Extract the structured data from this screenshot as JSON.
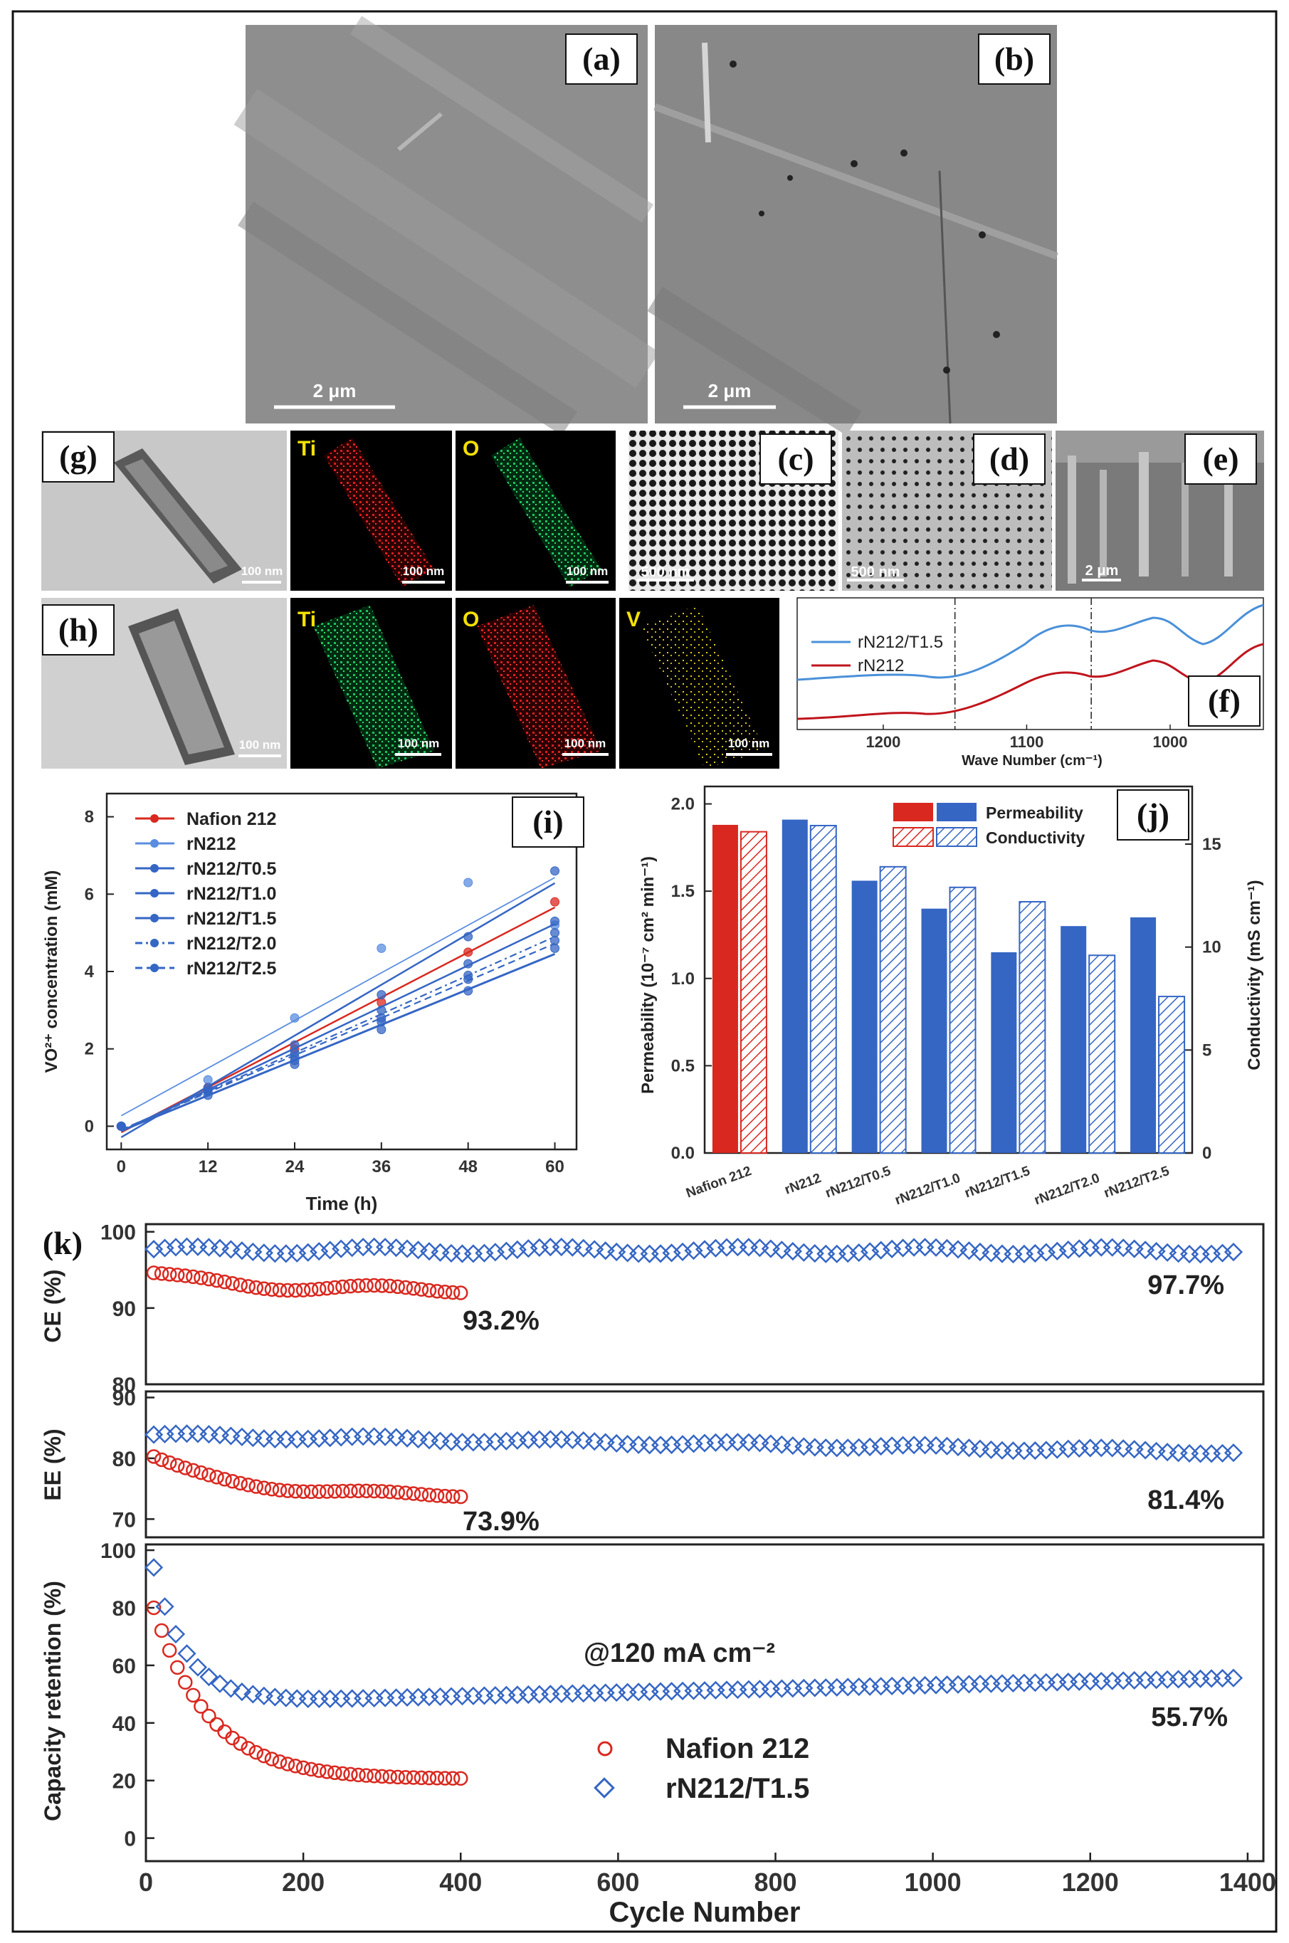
{
  "panels": {
    "a": {
      "label": "(a)",
      "scale": "2 μm"
    },
    "b": {
      "label": "(b)",
      "scale": "2 μm"
    },
    "c": {
      "label": "(c)",
      "scale": "500 nm"
    },
    "d": {
      "label": "(d)",
      "scale": "500 nm"
    },
    "e": {
      "label": "(e)",
      "scale": "2 μm"
    },
    "g": {
      "label": "(g)",
      "scale": "100 nm",
      "maps": [
        "Ti",
        "O"
      ]
    },
    "h": {
      "label": "(h)",
      "scale": "100 nm",
      "maps": [
        "Ti",
        "O",
        "V"
      ]
    },
    "f": {
      "label": "(f)"
    },
    "i": {
      "label": "(i)"
    },
    "j": {
      "label": "(j)"
    },
    "k": {
      "label": "(k)"
    }
  },
  "colors": {
    "red": "#d9281f",
    "blue": "#3566c4",
    "lightblue": "#5b8de0"
  },
  "chart_data": [
    {
      "id": "f",
      "type": "line",
      "xlabel": "Wave Number (cm⁻¹)",
      "x_ticks": [
        "1200",
        "1100",
        "1000"
      ],
      "legend": [
        "rN212/T1.5",
        "rN212"
      ],
      "xlim": [
        1260,
        935
      ],
      "vlines": [
        1150,
        1055
      ]
    },
    {
      "id": "i",
      "type": "scatter",
      "xlabel": "Time (h)",
      "ylabel": "VO²⁺ concentration (mM)",
      "x_ticks": [
        "0",
        "12",
        "24",
        "36",
        "48",
        "60"
      ],
      "y_ticks": [
        "0",
        "2",
        "4",
        "6",
        "8"
      ],
      "xlim": [
        -2,
        63
      ],
      "ylim": [
        -0.6,
        8.6
      ],
      "series": [
        {
          "name": "Nafion 212",
          "x": [
            0,
            12,
            24,
            36,
            48,
            60
          ],
          "values": [
            0,
            1.0,
            2.0,
            3.2,
            4.5,
            5.8
          ]
        },
        {
          "name": "rN212",
          "x": [
            0,
            12,
            24,
            36,
            48,
            60
          ],
          "values": [
            0,
            1.2,
            2.8,
            4.6,
            6.3,
            5.2
          ]
        },
        {
          "name": "rN212/T0.5",
          "x": [
            0,
            12,
            24,
            36,
            48,
            60
          ],
          "values": [
            0,
            1.0,
            2.1,
            3.4,
            4.9,
            6.6
          ]
        },
        {
          "name": "rN212/T1.0",
          "x": [
            0,
            12,
            24,
            36,
            48,
            60
          ],
          "values": [
            0,
            0.9,
            1.9,
            3.0,
            4.2,
            5.3
          ]
        },
        {
          "name": "rN212/T1.5",
          "x": [
            0,
            12,
            24,
            36,
            48,
            60
          ],
          "values": [
            0,
            0.8,
            1.6,
            2.5,
            3.5,
            4.6
          ]
        },
        {
          "name": "rN212/T2.0",
          "x": [
            0,
            12,
            24,
            36,
            48,
            60
          ],
          "values": [
            0,
            0.9,
            1.8,
            2.8,
            3.9,
            5.0
          ]
        },
        {
          "name": "rN212/T2.5",
          "x": [
            0,
            12,
            24,
            36,
            48,
            60
          ],
          "values": [
            0,
            0.9,
            1.7,
            2.7,
            3.8,
            4.8
          ]
        }
      ]
    },
    {
      "id": "j",
      "type": "bar",
      "categories": [
        "Nafion 212",
        "rN212",
        "rN212/T0.5",
        "rN212/T1.0",
        "rN212/T1.5",
        "rN212/T2.0",
        "rN212/T2.5"
      ],
      "ylabel": "Permeability (10⁻⁷ cm² min⁻¹)",
      "y2label": "Conductivity (mS cm⁻¹)",
      "y_ticks": [
        "0.0",
        "0.5",
        "1.0",
        "1.5",
        "2.0"
      ],
      "y2_ticks": [
        "0",
        "5",
        "10",
        "15"
      ],
      "ylim": [
        0,
        2.1
      ],
      "y2lim": [
        0,
        17.8
      ],
      "legend": [
        "Permeability",
        "Conductivity"
      ],
      "series": [
        {
          "name": "Permeability",
          "values": [
            1.88,
            1.91,
            1.56,
            1.4,
            1.15,
            1.3,
            1.35
          ]
        },
        {
          "name": "Conductivity",
          "values": [
            15.6,
            15.9,
            13.9,
            12.9,
            12.2,
            9.6,
            7.6
          ]
        }
      ]
    },
    {
      "id": "k-ce",
      "type": "scatter",
      "ylabel": "CE (%)",
      "y_ticks": [
        "80",
        "90",
        "100"
      ],
      "ylim": [
        80,
        101
      ],
      "xlim": [
        0,
        1420
      ],
      "series": [
        {
          "name": "Nafion 212",
          "start": 10,
          "end": 400,
          "start_value": 94.5,
          "end_value": 92.4
        },
        {
          "name": "rN212/T1.5",
          "start": 10,
          "end": 1395,
          "start_value": 97.6,
          "end_value": 97.5
        }
      ],
      "annotations": [
        "93.2%",
        "97.7%"
      ]
    },
    {
      "id": "k-ee",
      "type": "scatter",
      "ylabel": "EE (%)",
      "y_ticks": [
        "70",
        "80",
        "90"
      ],
      "ylim": [
        67,
        91
      ],
      "xlim": [
        0,
        1420
      ],
      "series": [
        {
          "name": "Nafion 212",
          "start": 10,
          "end": 400,
          "start_value": 80.2,
          "end_value": 73.9
        },
        {
          "name": "rN212/T1.5",
          "start": 10,
          "end": 1395,
          "start_value": 83.8,
          "end_value": 81.0
        }
      ],
      "annotations": [
        "73.9%",
        "81.4%"
      ]
    },
    {
      "id": "k-cap",
      "type": "scatter",
      "ylabel": "Capacity retention (%)",
      "xlabel": "Cycle Number",
      "x_ticks": [
        "0",
        "200",
        "400",
        "600",
        "800",
        "1000",
        "1200",
        "1400"
      ],
      "y_ticks": [
        "0",
        "20",
        "40",
        "60",
        "80",
        "100"
      ],
      "ylim": [
        -8,
        102
      ],
      "xlim": [
        0,
        1420
      ],
      "series": [
        {
          "name": "Nafion 212",
          "start": 10,
          "end": 400,
          "start_value": 80,
          "end_value": 20.5
        },
        {
          "name": "rN212/T1.5",
          "start": 10,
          "end": 1395,
          "start_value": 94,
          "end_value": 55.7
        }
      ],
      "condition": "@120 mA cm⁻²",
      "annotations": [
        "55.7%"
      ],
      "legend": [
        "Nafion 212",
        "rN212/T1.5"
      ]
    }
  ]
}
